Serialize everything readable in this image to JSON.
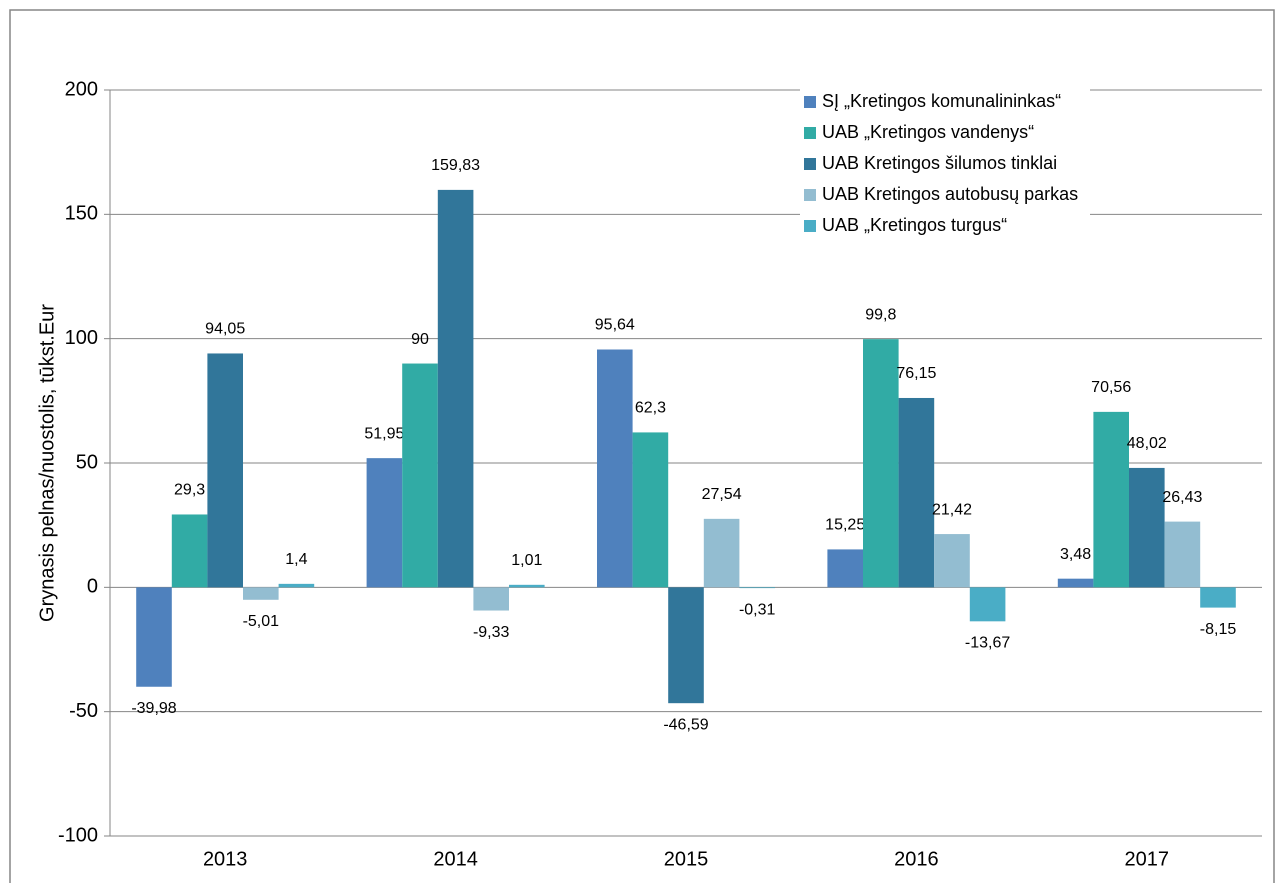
{
  "chart_data": {
    "type": "bar",
    "y_label": "Grynasis pelnas/nuostolis, tūkst.Eur",
    "categories": [
      "2013",
      "2014",
      "2015",
      "2016",
      "2017"
    ],
    "series": [
      {
        "name": "SĮ „Kretingos komunalininkas“",
        "color": "#4f81bd",
        "values": [
          -39.98,
          51.95,
          95.64,
          15.25,
          3.48
        ],
        "value_labels": [
          "-39,98",
          "51,95",
          "95,64",
          "15,25",
          "3,48"
        ]
      },
      {
        "name": "UAB „Kretingos vandenys“",
        "color": "#31aba5",
        "values": [
          29.3,
          90,
          62.3,
          99.8,
          70.56
        ],
        "value_labels": [
          "29,3",
          "90",
          "62,3",
          "99,8",
          "70,56"
        ]
      },
      {
        "name": "UAB Kretingos šilumos tinklai",
        "color": "#31769a",
        "values": [
          94.05,
          159.83,
          -46.59,
          76.15,
          48.02
        ],
        "value_labels": [
          "94,05",
          "159,83",
          "-46,59",
          "76,15",
          "48,02"
        ]
      },
      {
        "name": "UAB Kretingos autobusų parkas",
        "color": "#93bdd1",
        "values": [
          -5.01,
          -9.33,
          27.54,
          21.42,
          26.43
        ],
        "value_labels": [
          "-5,01",
          "-9,33",
          "27,54",
          "21,42",
          "26,43"
        ]
      },
      {
        "name": "UAB „Kretingos turgus“",
        "color": "#4aadc6",
        "values": [
          1.4,
          1.01,
          -0.31,
          -13.67,
          -8.15
        ],
        "value_labels": [
          "1,4",
          "1,01",
          "-0,31",
          "-13,67",
          "-8,15"
        ]
      }
    ],
    "ylim": [
      -100,
      200
    ],
    "yticks": [
      -100,
      -50,
      0,
      50,
      100,
      150,
      200
    ],
    "grid": true,
    "legend": "upper right"
  }
}
